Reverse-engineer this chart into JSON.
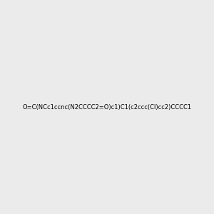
{
  "smiles": "O=C(NCc1ccnc(N2CCCC2=O)c1)C1(c2ccc(Cl)cc2)CCCC1",
  "img_size": [
    300,
    300
  ],
  "background_color": "#ebebeb",
  "atom_colors": {
    "N": "#0000ff",
    "O": "#ff0000",
    "Cl": "#00aa00",
    "H_on_N": "#008080"
  },
  "title": ""
}
